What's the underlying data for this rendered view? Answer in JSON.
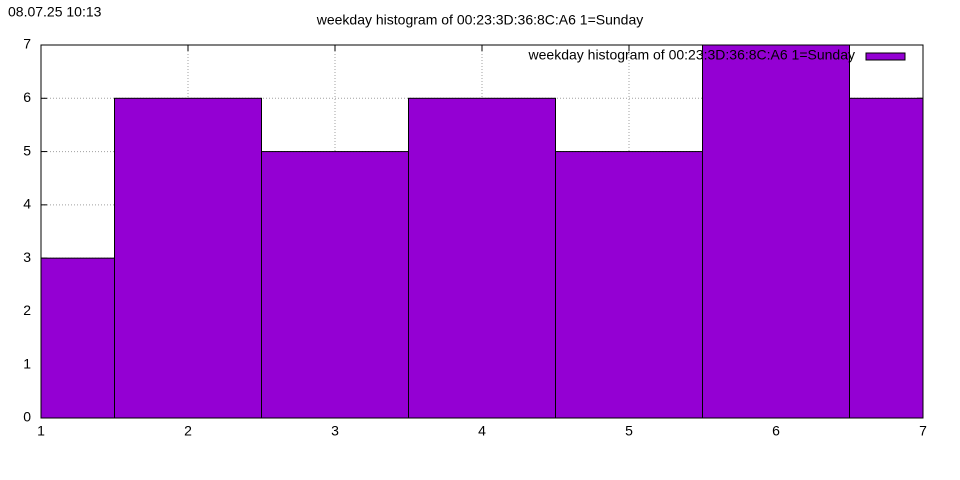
{
  "chart_data": {
    "type": "bar",
    "timestamp": "08.07.25 10:13",
    "title": "weekday histogram of 00:23:3D:36:8C:A6 1=Sunday",
    "x": [
      1,
      2,
      3,
      4,
      5,
      6,
      7
    ],
    "series": [
      {
        "name": "weekday histogram of 00:23:3D:36:8C:A6 1=Sunday",
        "color": "#9400d3",
        "values": [
          3,
          6,
          5,
          6,
          5,
          7,
          6
        ]
      }
    ],
    "xlim": [
      1,
      7
    ],
    "xticks": [
      1,
      2,
      3,
      4,
      5,
      6,
      7
    ],
    "ylim": [
      0,
      7
    ],
    "yticks": [
      0,
      1,
      2,
      3,
      4,
      5,
      6,
      7
    ],
    "grid": true,
    "legend": "top-right"
  }
}
